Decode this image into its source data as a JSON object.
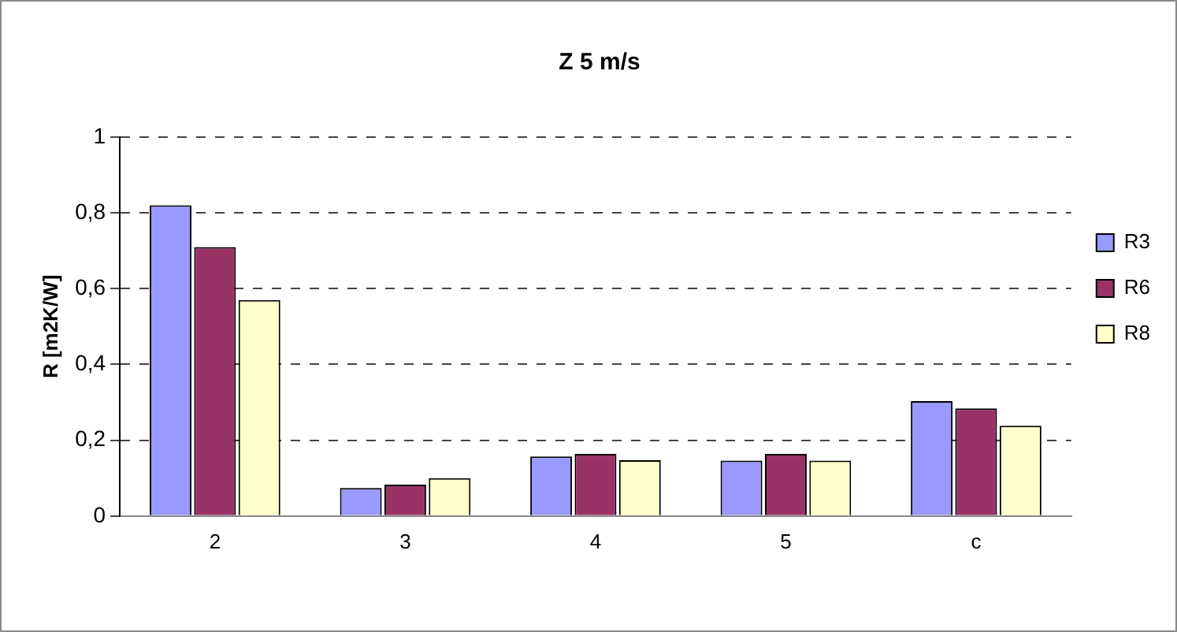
{
  "chart_data": {
    "type": "bar",
    "title": "Z 5 m/s",
    "ylabel": "R [m2K/W]",
    "categories": [
      "2",
      "3",
      "4",
      "5",
      "c"
    ],
    "series": [
      {
        "name": "R3",
        "color": "#9999ff",
        "values": [
          0.82,
          0.074,
          0.157,
          0.146,
          0.303
        ]
      },
      {
        "name": "R6",
        "color": "#993366",
        "values": [
          0.71,
          0.083,
          0.164,
          0.164,
          0.284
        ]
      },
      {
        "name": "R8",
        "color": "#ffffcc",
        "values": [
          0.57,
          0.1,
          0.147,
          0.146,
          0.238
        ]
      }
    ],
    "ylim": [
      0,
      1
    ],
    "yticks": [
      {
        "value": 0,
        "label": "0"
      },
      {
        "value": 0.2,
        "label": "0,2"
      },
      {
        "value": 0.4,
        "label": "0,4"
      },
      {
        "value": 0.6,
        "label": "0,6"
      },
      {
        "value": 0.8,
        "label": "0,8"
      },
      {
        "value": 1,
        "label": "1"
      }
    ],
    "grid": "y",
    "legend": "right"
  }
}
